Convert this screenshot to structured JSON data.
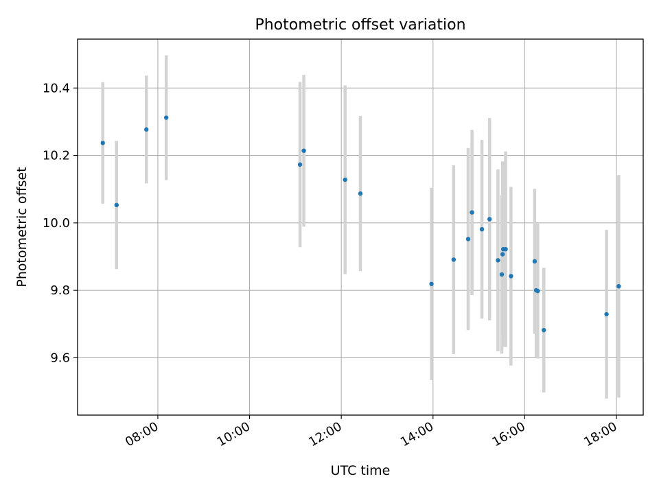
{
  "chart_data": {
    "type": "scatter",
    "title": "Photometric offset variation",
    "xlabel": "UTC time",
    "ylabel": "Photometric offset",
    "x_ticks": [
      "08:00",
      "10:00",
      "12:00",
      "14:00",
      "16:00",
      "18:00"
    ],
    "y_ticks": [
      "9.6",
      "9.8",
      "10.0",
      "10.2",
      "10.4"
    ],
    "xlim": [
      "06:15",
      "18:35"
    ],
    "ylim": [
      9.43,
      10.545
    ],
    "grid": true,
    "colors": {
      "point": "#1f77b4",
      "errorbar": "#d3d3d3",
      "grid": "#b0b0b0",
      "axes": "#000000"
    },
    "series": [
      {
        "points": [
          {
            "x": "06:48",
            "y": 10.237,
            "err": 0.18
          },
          {
            "x": "07:06",
            "y": 10.053,
            "err": 0.19
          },
          {
            "x": "07:45",
            "y": 10.277,
            "err": 0.16
          },
          {
            "x": "08:11",
            "y": 10.312,
            "err": 0.185
          },
          {
            "x": "11:06",
            "y": 10.173,
            "err": 0.245
          },
          {
            "x": "11:11",
            "y": 10.214,
            "err": 0.225
          },
          {
            "x": "12:05",
            "y": 10.128,
            "err": 0.28
          },
          {
            "x": "12:25",
            "y": 10.087,
            "err": 0.23
          },
          {
            "x": "13:58",
            "y": 9.819,
            "err": 0.285
          },
          {
            "x": "14:27",
            "y": 9.891,
            "err": 0.28
          },
          {
            "x": "14:46",
            "y": 9.952,
            "err": 0.27
          },
          {
            "x": "14:51",
            "y": 10.031,
            "err": 0.245
          },
          {
            "x": "15:04",
            "y": 9.981,
            "err": 0.265
          },
          {
            "x": "15:14",
            "y": 10.011,
            "err": 0.3
          },
          {
            "x": "15:25",
            "y": 9.889,
            "err": 0.27
          },
          {
            "x": "15:30",
            "y": 9.847,
            "err": 0.235
          },
          {
            "x": "15:31",
            "y": 9.907,
            "err": 0.275
          },
          {
            "x": "15:32",
            "y": 9.922,
            "err": 0.26
          },
          {
            "x": "15:35",
            "y": 9.922,
            "err": 0.29
          },
          {
            "x": "15:42",
            "y": 9.842,
            "err": 0.265
          },
          {
            "x": "16:13",
            "y": 9.886,
            "err": 0.215
          },
          {
            "x": "16:15",
            "y": 9.8,
            "err": 0.2
          },
          {
            "x": "16:17",
            "y": 9.798,
            "err": 0.2
          },
          {
            "x": "16:25",
            "y": 9.682,
            "err": 0.185
          },
          {
            "x": "17:47",
            "y": 9.729,
            "err": 0.25
          },
          {
            "x": "18:03",
            "y": 9.812,
            "err": 0.33
          }
        ]
      }
    ]
  }
}
